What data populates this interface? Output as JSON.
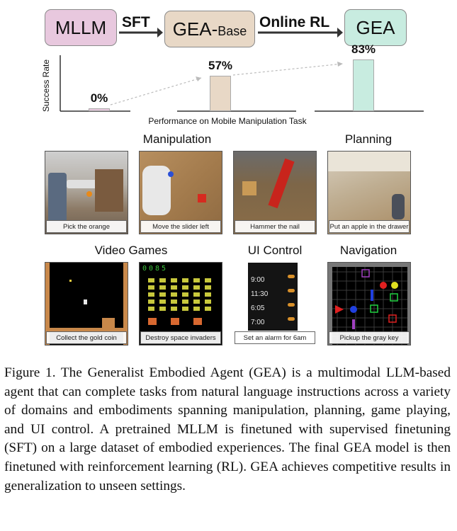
{
  "pipeline": {
    "box1": "MLLM",
    "arrow1": "SFT",
    "box2_main": "GEA-",
    "box2_sub": "Base",
    "arrow2": "Online RL",
    "box3": "GEA",
    "colors": {
      "mllm": "#e8c8de",
      "base": "#e8d8c6",
      "gea": "#c8ece0"
    }
  },
  "chart_data": {
    "type": "bar",
    "categories": [
      "MLLM",
      "GEA-Base",
      "GEA"
    ],
    "values": [
      0,
      57,
      83
    ],
    "value_labels": [
      "0%",
      "57%",
      "83%"
    ],
    "ylabel": "Success Rate",
    "xlabel": "Performance on Mobile Manipulation Task",
    "ylim": [
      0,
      100
    ],
    "colors": [
      "#e8c8de",
      "#e8d8c6",
      "#c8ece0"
    ]
  },
  "sections": {
    "manipulation": "Manipulation",
    "planning": "Planning",
    "video_games": "Video Games",
    "ui_control": "UI Control",
    "navigation": "Navigation"
  },
  "tiles": {
    "pick_orange": "Pick the orange",
    "move_slider": "Move the slider left",
    "hammer_nail": "Hammer the nail",
    "apple_drawer": "Put an apple in the drawer",
    "gold_coin": "Collect the gold coin",
    "space_invaders": "Destroy space invaders",
    "alarm": "Set an alarm for 6am",
    "gray_key": "Pickup the gray key"
  },
  "game_score": "0085",
  "alarm_times": [
    "9:00",
    "11:30",
    "6:05",
    "7:00"
  ],
  "caption": "Figure 1. The Generalist Embodied Agent (GEA) is a multimodal LLM-based agent that can complete tasks from natural language instructions across a variety of domains and embodiments spanning manipulation, planning, game playing, and UI control. A pretrained MLLM is finetuned with supervised finetuning (SFT) on a large dataset of embodied experiences. The final GEA model is then finetuned with reinforcement learning (RL). GEA achieves competitive results in generalization to unseen settings."
}
